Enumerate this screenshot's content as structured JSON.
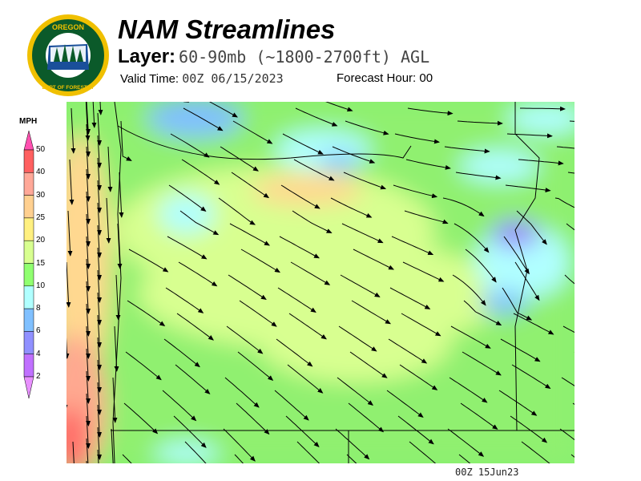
{
  "logo": {
    "text_top": "OREGON",
    "text_bottom": "DEPARTMENT OF FORESTRY",
    "colors": {
      "ring": "#f0c000",
      "field": "#0b5a2a"
    }
  },
  "header": {
    "title": "NAM Streamlines",
    "layer_label": "Layer:",
    "layer_value": "60-90mb (~1800-2700ft) AGL",
    "valid_label": "Valid Time:",
    "valid_value": "00Z 06/15/2023",
    "forecast_label": "Forecast Hour:",
    "forecast_value": "00"
  },
  "colorbar": {
    "unit": "MPH",
    "labels": [
      "50",
      "40",
      "30",
      "25",
      "20",
      "15",
      "10",
      "8",
      "6",
      "4",
      "2"
    ],
    "colors": [
      "#ff6060",
      "#ffa898",
      "#ffd090",
      "#fff080",
      "#d8ff90",
      "#90ff70",
      "#b0ffff",
      "#80c0ff",
      "#9090ff",
      "#c070ff"
    ],
    "top_arrow_color": "#ff50b0",
    "bottom_arrow_color": "#e890ff"
  },
  "footer": {
    "timestamp": "00Z 15Jun23"
  }
}
